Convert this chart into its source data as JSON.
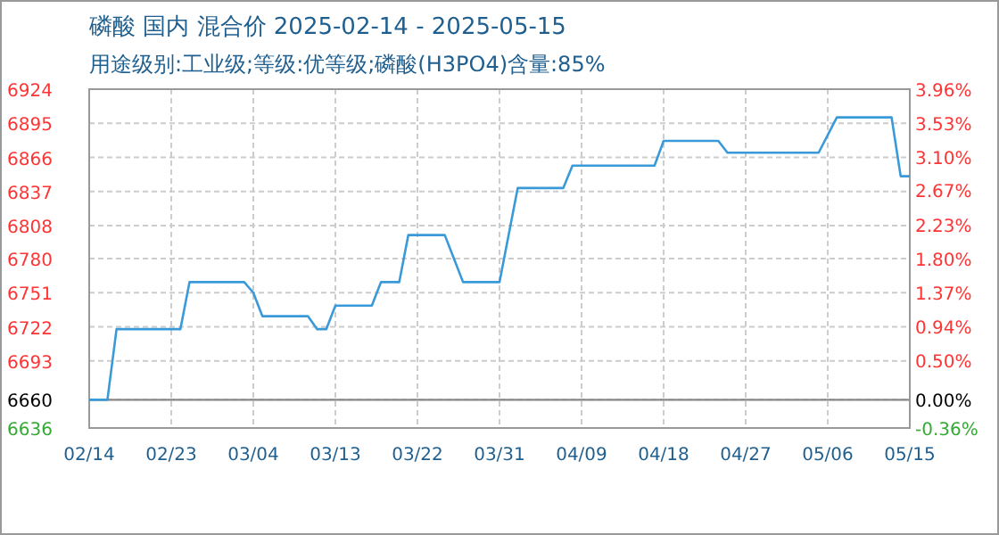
{
  "chart_data": {
    "type": "line",
    "title": "磷酸 国内 混合价 2025-02-14 - 2025-05-15",
    "subtitle": "用途级别:工业级;等级:优等级;磷酸(H3PO4)含量:85%",
    "x": [
      "2025-02-14",
      "2025-02-16",
      "2025-02-17",
      "2025-02-24",
      "2025-02-25",
      "2025-03-03",
      "2025-03-04",
      "2025-03-05",
      "2025-03-10",
      "2025-03-11",
      "2025-03-12",
      "2025-03-13",
      "2025-03-17",
      "2025-03-18",
      "2025-03-20",
      "2025-03-21",
      "2025-03-25",
      "2025-03-27",
      "2025-03-31",
      "2025-04-02",
      "2025-04-07",
      "2025-04-08",
      "2025-04-17",
      "2025-04-18",
      "2025-04-24",
      "2025-04-25",
      "2025-05-05",
      "2025-05-07",
      "2025-05-13",
      "2025-05-14",
      "2025-05-15"
    ],
    "series": [
      {
        "color": "#3a9ad9",
        "values": [
          6660,
          6660,
          6720,
          6720,
          6760,
          6760,
          6751,
          6731,
          6731,
          6720,
          6720,
          6740,
          6740,
          6760,
          6760,
          6800,
          6800,
          6760,
          6760,
          6840,
          6840,
          6859,
          6859,
          6880,
          6880,
          6870,
          6870,
          6900,
          6900,
          6850,
          6850
        ]
      }
    ],
    "xlim": [
      "2025-02-14",
      "2025-05-15"
    ],
    "xticks": [
      {
        "value": "2025-02-14",
        "label": "02/14"
      },
      {
        "value": "2025-02-23",
        "label": "02/23"
      },
      {
        "value": "2025-03-04",
        "label": "03/04"
      },
      {
        "value": "2025-03-13",
        "label": "03/13"
      },
      {
        "value": "2025-03-22",
        "label": "03/22"
      },
      {
        "value": "2025-03-31",
        "label": "03/31"
      },
      {
        "value": "2025-04-09",
        "label": "04/09"
      },
      {
        "value": "2025-04-18",
        "label": "04/18"
      },
      {
        "value": "2025-04-27",
        "label": "04/27"
      },
      {
        "value": "2025-05-06",
        "label": "05/06"
      },
      {
        "value": "2025-05-15",
        "label": "05/15"
      }
    ],
    "ylim": [
      6636,
      6924
    ],
    "yticks": [
      6636,
      6660,
      6693,
      6722,
      6751,
      6780,
      6808,
      6837,
      6866,
      6895,
      6924
    ],
    "y2lim": [
      -0.36,
      3.96
    ],
    "y2ticks": [
      {
        "value": -0.36,
        "label": "-0.36%"
      },
      {
        "value": 0,
        "label": "0.00%"
      },
      {
        "value": 0.5,
        "label": "0.50%"
      },
      {
        "value": 0.94,
        "label": "0.94%"
      },
      {
        "value": 1.37,
        "label": "1.37%"
      },
      {
        "value": 1.8,
        "label": "1.80%"
      },
      {
        "value": 2.23,
        "label": "2.23%"
      },
      {
        "value": 2.67,
        "label": "2.67%"
      },
      {
        "value": 3.1,
        "label": "3.10%"
      },
      {
        "value": 3.53,
        "label": "3.53%"
      },
      {
        "value": 3.96,
        "label": "3.96%"
      }
    ],
    "ref_lines": [
      {
        "axis": "y",
        "value": 6660,
        "color": "#888888"
      }
    ],
    "grid": true,
    "line_style": "solid",
    "marker": "none"
  }
}
